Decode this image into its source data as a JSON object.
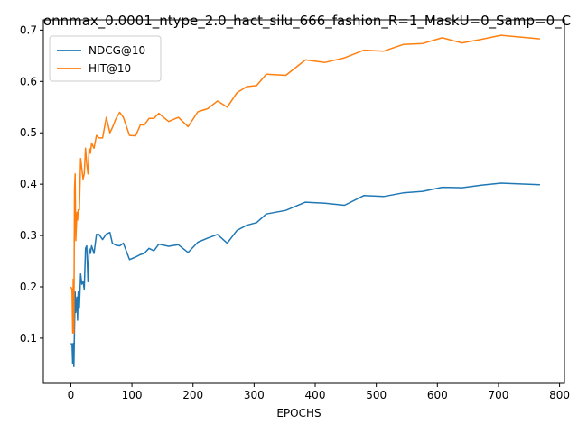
{
  "chart_data": {
    "type": "line",
    "title": "onnmax_0.0001_ntype_2.0_hact_silu_666_fashion_R=1_MaskU=0_Samp=0_C",
    "xlabel": "EPOCHS",
    "ylabel": "",
    "xlim": [
      -45,
      808
    ],
    "ylim": [
      0.012,
      0.72
    ],
    "xticks": [
      0,
      100,
      200,
      300,
      400,
      500,
      600,
      700,
      800
    ],
    "yticks": [
      0.1,
      0.2,
      0.3,
      0.4,
      0.5,
      0.6,
      0.7
    ],
    "grid": false,
    "legend_position": "top-left",
    "series": [
      {
        "name": "NDCG@10",
        "color": "#1f77b4",
        "x": [
          0,
          2,
          3,
          4,
          5,
          6,
          7,
          8,
          10,
          11,
          12,
          14,
          16,
          18,
          20,
          22,
          24,
          26,
          28,
          30,
          32,
          34,
          38,
          42,
          46,
          52,
          58,
          64,
          68,
          74,
          80,
          86,
          96,
          106,
          114,
          120,
          128,
          136,
          144,
          160,
          176,
          192,
          208,
          224,
          240,
          256,
          272,
          288,
          304,
          320,
          352,
          384,
          416,
          448,
          480,
          512,
          544,
          576,
          608,
          640,
          672,
          704,
          768
        ],
        "y": [
          0.09,
          0.088,
          0.05,
          0.09,
          0.045,
          0.12,
          0.19,
          0.15,
          0.18,
          0.135,
          0.19,
          0.16,
          0.225,
          0.205,
          0.21,
          0.195,
          0.275,
          0.28,
          0.21,
          0.275,
          0.265,
          0.28,
          0.265,
          0.302,
          0.302,
          0.292,
          0.303,
          0.306,
          0.285,
          0.281,
          0.28,
          0.285,
          0.253,
          0.258,
          0.263,
          0.265,
          0.275,
          0.27,
          0.283,
          0.279,
          0.282,
          0.267,
          0.287,
          0.295,
          0.302,
          0.285,
          0.31,
          0.32,
          0.325,
          0.342,
          0.349,
          0.365,
          0.363,
          0.359,
          0.378,
          0.376,
          0.383,
          0.386,
          0.394,
          0.393,
          0.398,
          0.402,
          0.399
        ]
      },
      {
        "name": "HIT@10",
        "color": "#ff7f0e",
        "x": [
          0,
          2,
          3,
          4,
          5,
          6,
          7,
          8,
          10,
          11,
          12,
          14,
          16,
          18,
          20,
          22,
          24,
          26,
          28,
          30,
          32,
          34,
          38,
          42,
          46,
          52,
          58,
          64,
          68,
          74,
          80,
          86,
          96,
          106,
          114,
          120,
          128,
          136,
          144,
          160,
          176,
          192,
          208,
          224,
          240,
          256,
          272,
          288,
          304,
          320,
          352,
          384,
          416,
          448,
          480,
          512,
          544,
          576,
          608,
          640,
          672,
          704,
          768
        ],
        "y": [
          0.2,
          0.195,
          0.11,
          0.215,
          0.11,
          0.39,
          0.42,
          0.29,
          0.345,
          0.33,
          0.35,
          0.35,
          0.45,
          0.43,
          0.41,
          0.42,
          0.47,
          0.44,
          0.42,
          0.47,
          0.46,
          0.48,
          0.47,
          0.495,
          0.49,
          0.49,
          0.53,
          0.5,
          0.51,
          0.528,
          0.54,
          0.53,
          0.495,
          0.494,
          0.516,
          0.515,
          0.528,
          0.528,
          0.538,
          0.522,
          0.53,
          0.512,
          0.541,
          0.547,
          0.562,
          0.55,
          0.578,
          0.59,
          0.592,
          0.614,
          0.612,
          0.642,
          0.637,
          0.646,
          0.661,
          0.659,
          0.672,
          0.674,
          0.685,
          0.675,
          0.682,
          0.69,
          0.683
        ]
      }
    ]
  }
}
